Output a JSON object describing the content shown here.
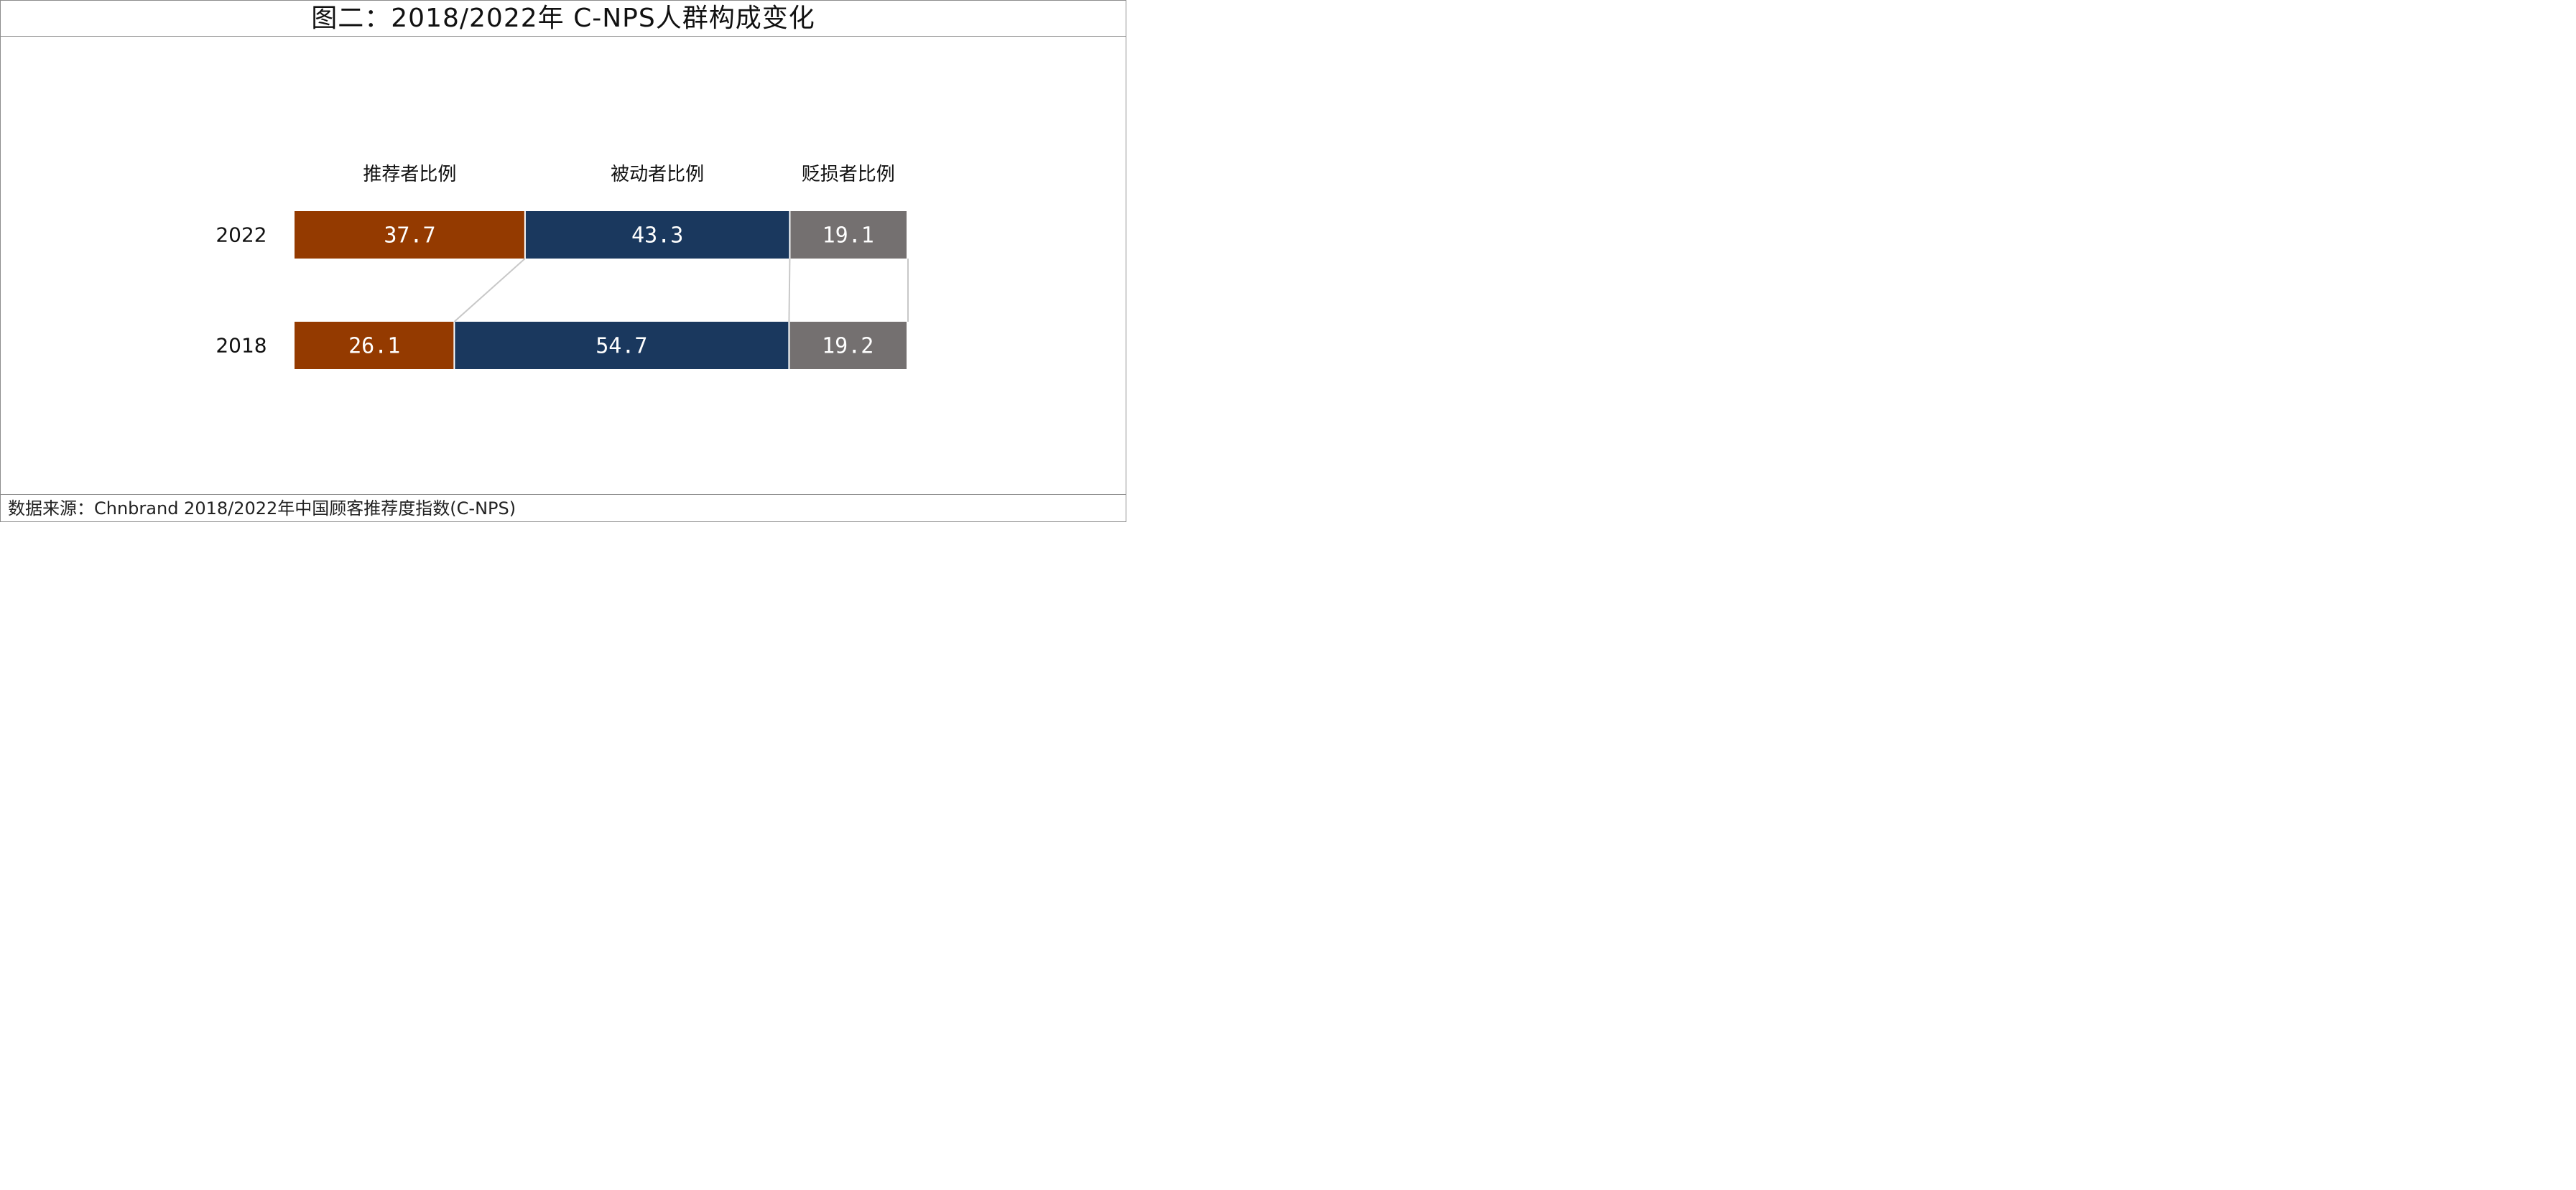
{
  "title": "图二：2018/2022年 C-NPS人群构成变化",
  "footer": "数据来源：Chnbrand 2018/2022年中国顾客推荐度指数(C-NPS)",
  "chart_data": {
    "type": "bar",
    "orientation": "horizontal",
    "stacked": true,
    "percent_stacked": true,
    "categories": [
      "2022",
      "2018"
    ],
    "series": [
      {
        "name": "推荐者比例",
        "values": [
          37.7,
          26.1
        ],
        "color": "#943A00"
      },
      {
        "name": "被动者比例",
        "values": [
          43.3,
          54.7
        ],
        "color": "#1A385E"
      },
      {
        "name": "贬损者比例",
        "values": [
          19.1,
          19.2
        ],
        "color": "#747070"
      }
    ],
    "legend": "top",
    "grid": false,
    "connector_color": "#c8c8c8"
  }
}
